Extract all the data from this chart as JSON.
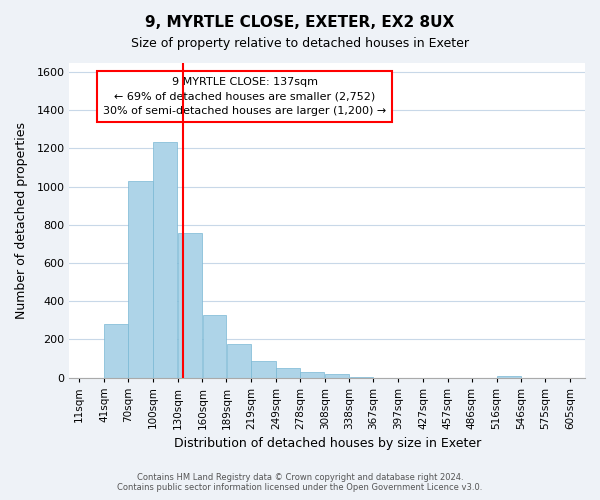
{
  "title": "9, MYRTLE CLOSE, EXETER, EX2 8UX",
  "subtitle": "Size of property relative to detached houses in Exeter",
  "xlabel": "Distribution of detached houses by size in Exeter",
  "ylabel": "Number of detached properties",
  "bar_left_edges": [
    11,
    41,
    70,
    100,
    130,
    160,
    189,
    219,
    249,
    278,
    308,
    338,
    367,
    397,
    427,
    457,
    486,
    516,
    546,
    575
  ],
  "bar_widths": [
    30,
    29,
    30,
    30,
    30,
    29,
    30,
    30,
    29,
    30,
    30,
    29,
    30,
    30,
    30,
    29,
    29,
    30,
    29,
    30
  ],
  "bar_heights": [
    0,
    280,
    1030,
    1235,
    755,
    330,
    175,
    85,
    50,
    30,
    20,
    5,
    0,
    0,
    0,
    0,
    0,
    10,
    0,
    0
  ],
  "bar_color": "#aed4e8",
  "bar_edgecolor": "#7ab8d4",
  "vline_x": 137,
  "vline_color": "red",
  "ylim": [
    0,
    1650
  ],
  "yticks": [
    0,
    200,
    400,
    600,
    800,
    1000,
    1200,
    1400,
    1600
  ],
  "xtick_labels": [
    "11sqm",
    "41sqm",
    "70sqm",
    "100sqm",
    "130sqm",
    "160sqm",
    "189sqm",
    "219sqm",
    "249sqm",
    "278sqm",
    "308sqm",
    "338sqm",
    "367sqm",
    "397sqm",
    "427sqm",
    "457sqm",
    "486sqm",
    "516sqm",
    "546sqm",
    "575sqm",
    "605sqm"
  ],
  "xtick_positions": [
    11,
    41,
    70,
    100,
    130,
    160,
    189,
    219,
    249,
    278,
    308,
    338,
    367,
    397,
    427,
    457,
    486,
    516,
    546,
    575,
    605
  ],
  "annotation_title": "9 MYRTLE CLOSE: 137sqm",
  "annotation_line1": "← 69% of detached houses are smaller (2,752)",
  "annotation_line2": "30% of semi-detached houses are larger (1,200) →",
  "annotation_box_color": "white",
  "annotation_box_edgecolor": "red",
  "footer_line1": "Contains HM Land Registry data © Crown copyright and database right 2024.",
  "footer_line2": "Contains public sector information licensed under the Open Government Licence v3.0.",
  "bg_color": "#eef2f7",
  "plot_bg_color": "white",
  "grid_color": "#c8d8e8"
}
